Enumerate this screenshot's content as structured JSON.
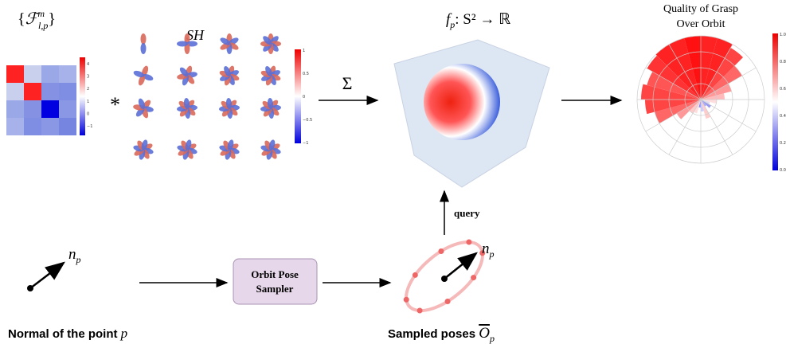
{
  "coefficients": {
    "open": "{",
    "base": "ℱ",
    "sup": "m",
    "sub": "l,p",
    "close": "}"
  },
  "coef_colorbar": [
    "4",
    "3",
    "2",
    "1",
    "0",
    "−1"
  ],
  "multiply": "*",
  "sh_label": "SH",
  "sh_colorbar": [
    "1",
    "0.5",
    "0",
    "−0.5",
    "−1"
  ],
  "sum": "Σ",
  "function_label": {
    "base": "f",
    "sub": "p",
    "rest": ": S² → ℝ"
  },
  "quality": {
    "title": [
      "Quality of Grasp",
      "Over Orbit"
    ],
    "colorbar": [
      "1.0",
      "0.8",
      "0.6",
      "0.4",
      "0.2",
      "0.0"
    ]
  },
  "query": "query",
  "normal": {
    "vec": "n",
    "sub": "p",
    "caption": "Normal of the point ",
    "point": "p"
  },
  "sampler": [
    "Orbit Pose",
    "Sampler"
  ],
  "sampled": {
    "vec": "n",
    "sub": "p",
    "caption": "Sampled poses ",
    "symbol": "O",
    "symbol_sub": "p"
  }
}
